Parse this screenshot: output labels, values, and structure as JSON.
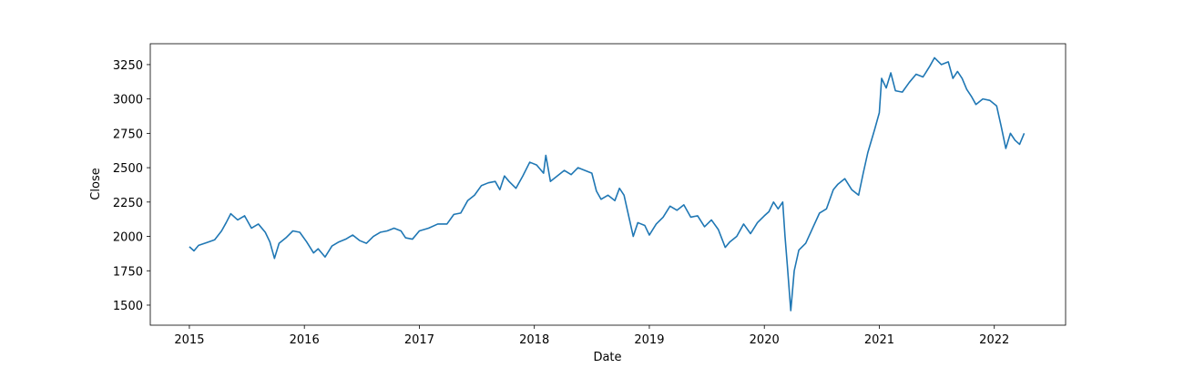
{
  "chart_data": {
    "type": "line",
    "xlabel": "Date",
    "ylabel": "Close",
    "color": "#1f77b4",
    "grid": false,
    "xlim": [
      2014.66,
      2022.62
    ],
    "ylim": [
      1354,
      3402
    ],
    "xticks": [
      2015,
      2016,
      2017,
      2018,
      2019,
      2020,
      2021,
      2022
    ],
    "yticks": [
      1500,
      1750,
      2000,
      2250,
      2500,
      2750,
      3000,
      3250
    ],
    "x": [
      2015.0,
      2015.04,
      2015.08,
      2015.15,
      2015.22,
      2015.28,
      2015.32,
      2015.36,
      2015.42,
      2015.48,
      2015.54,
      2015.6,
      2015.66,
      2015.7,
      2015.74,
      2015.78,
      2015.84,
      2015.9,
      2015.96,
      2016.02,
      2016.08,
      2016.12,
      2016.18,
      2016.24,
      2016.3,
      2016.36,
      2016.42,
      2016.48,
      2016.54,
      2016.6,
      2016.66,
      2016.72,
      2016.78,
      2016.84,
      2016.88,
      2016.94,
      2017.0,
      2017.08,
      2017.16,
      2017.24,
      2017.3,
      2017.36,
      2017.42,
      2017.48,
      2017.54,
      2017.6,
      2017.66,
      2017.7,
      2017.74,
      2017.78,
      2017.84,
      2017.9,
      2017.96,
      2018.02,
      2018.08,
      2018.1,
      2018.14,
      2018.2,
      2018.26,
      2018.32,
      2018.38,
      2018.44,
      2018.5,
      2018.54,
      2018.58,
      2018.64,
      2018.7,
      2018.74,
      2018.78,
      2018.82,
      2018.86,
      2018.9,
      2018.96,
      2019.0,
      2019.06,
      2019.12,
      2019.18,
      2019.24,
      2019.3,
      2019.36,
      2019.42,
      2019.48,
      2019.54,
      2019.6,
      2019.66,
      2019.7,
      2019.76,
      2019.82,
      2019.88,
      2019.94,
      2020.0,
      2020.04,
      2020.08,
      2020.12,
      2020.16,
      2020.18,
      2020.2,
      2020.23,
      2020.26,
      2020.3,
      2020.36,
      2020.42,
      2020.48,
      2020.54,
      2020.6,
      2020.64,
      2020.7,
      2020.76,
      2020.82,
      2020.86,
      2020.9,
      2020.96,
      2021.0,
      2021.02,
      2021.06,
      2021.1,
      2021.14,
      2021.2,
      2021.26,
      2021.32,
      2021.38,
      2021.44,
      2021.48,
      2021.54,
      2021.6,
      2021.64,
      2021.68,
      2021.72,
      2021.76,
      2021.8,
      2021.84,
      2021.9,
      2021.96,
      2022.02,
      2022.06,
      2022.1,
      2022.14,
      2022.18,
      2022.22,
      2022.26
    ],
    "series": [
      {
        "name": "Close",
        "color": "#1f77b4",
        "values": [
          1925,
          1895,
          1935,
          1955,
          1975,
          2040,
          2100,
          2165,
          2120,
          2150,
          2060,
          2090,
          2030,
          1960,
          1840,
          1950,
          1990,
          2040,
          2030,
          1960,
          1880,
          1910,
          1850,
          1930,
          1960,
          1980,
          2010,
          1970,
          1950,
          2000,
          2030,
          2040,
          2060,
          2040,
          1990,
          1980,
          2040,
          2060,
          2090,
          2090,
          2160,
          2170,
          2260,
          2300,
          2370,
          2390,
          2400,
          2340,
          2440,
          2400,
          2350,
          2440,
          2540,
          2520,
          2460,
          2590,
          2400,
          2440,
          2480,
          2450,
          2500,
          2480,
          2460,
          2330,
          2270,
          2300,
          2260,
          2350,
          2300,
          2150,
          2000,
          2100,
          2080,
          2010,
          2090,
          2140,
          2220,
          2190,
          2230,
          2140,
          2150,
          2070,
          2120,
          2050,
          1920,
          1960,
          2000,
          2090,
          2020,
          2100,
          2150,
          2180,
          2250,
          2200,
          2250,
          2000,
          1790,
          1460,
          1750,
          1900,
          1950,
          2060,
          2170,
          2200,
          2340,
          2380,
          2420,
          2340,
          2300,
          2460,
          2610,
          2780,
          2900,
          3150,
          3080,
          3190,
          3060,
          3050,
          3120,
          3180,
          3160,
          3240,
          3300,
          3250,
          3270,
          3150,
          3200,
          3150,
          3070,
          3020,
          2960,
          3000,
          2990,
          2950,
          2800,
          2640,
          2750,
          2700,
          2670,
          2750
        ]
      }
    ]
  }
}
